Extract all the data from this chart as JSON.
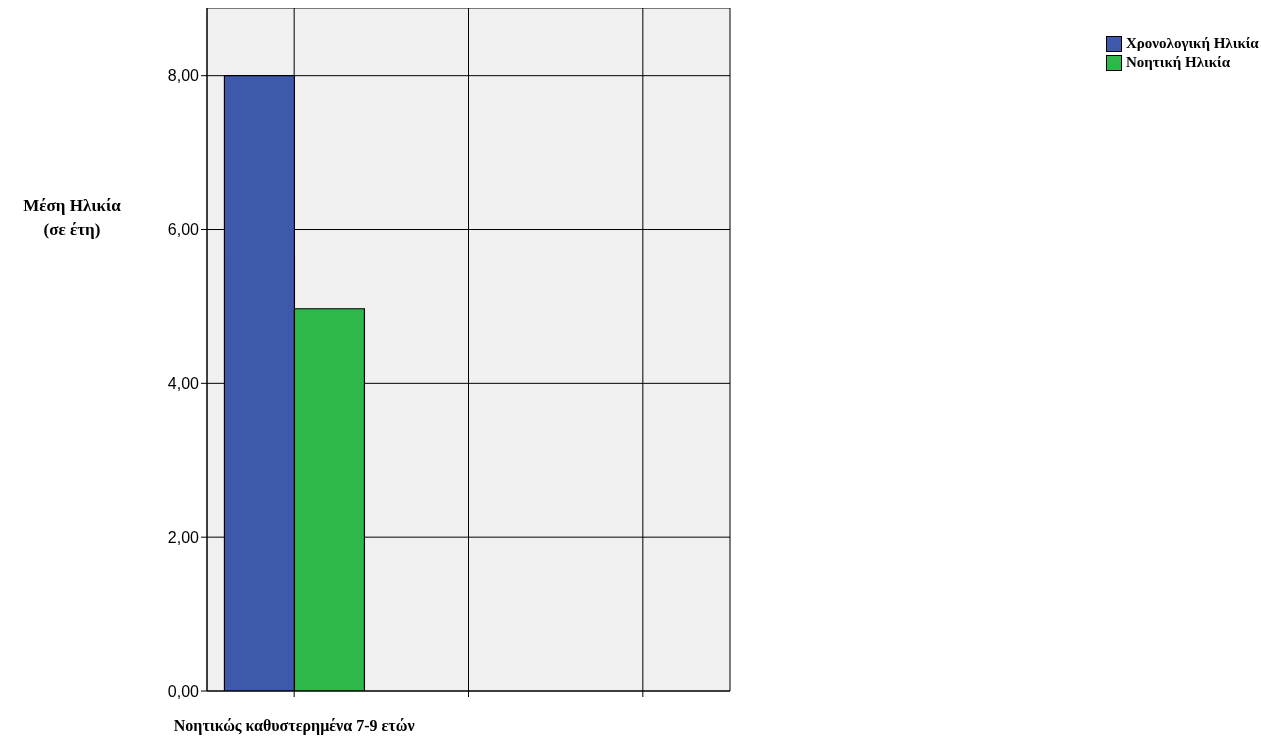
{
  "chart_data": {
    "type": "bar",
    "ylabel": "Μέση Ηλικία (σε έτη)",
    "categories": [
      "Νοητικώς καθυστερημένα 7-9 ετών",
      null,
      null
    ],
    "series": [
      {
        "name": "Χρονολογική Ηλικία",
        "color": "#3e58ac",
        "values": [
          8.0,
          null,
          null
        ]
      },
      {
        "name": "Νοητική Ηλικία",
        "color": "#2fb84a",
        "values": [
          4.97,
          null,
          null
        ]
      }
    ],
    "ylim": [
      0,
      8.88
    ],
    "yticks": [
      {
        "value": 0,
        "label": "0,00"
      },
      {
        "value": 2,
        "label": "2,00"
      },
      {
        "value": 4,
        "label": "4,00"
      },
      {
        "value": 6,
        "label": "6,00"
      },
      {
        "value": 8,
        "label": "8,00"
      }
    ],
    "grid": true,
    "legend": "top right"
  }
}
